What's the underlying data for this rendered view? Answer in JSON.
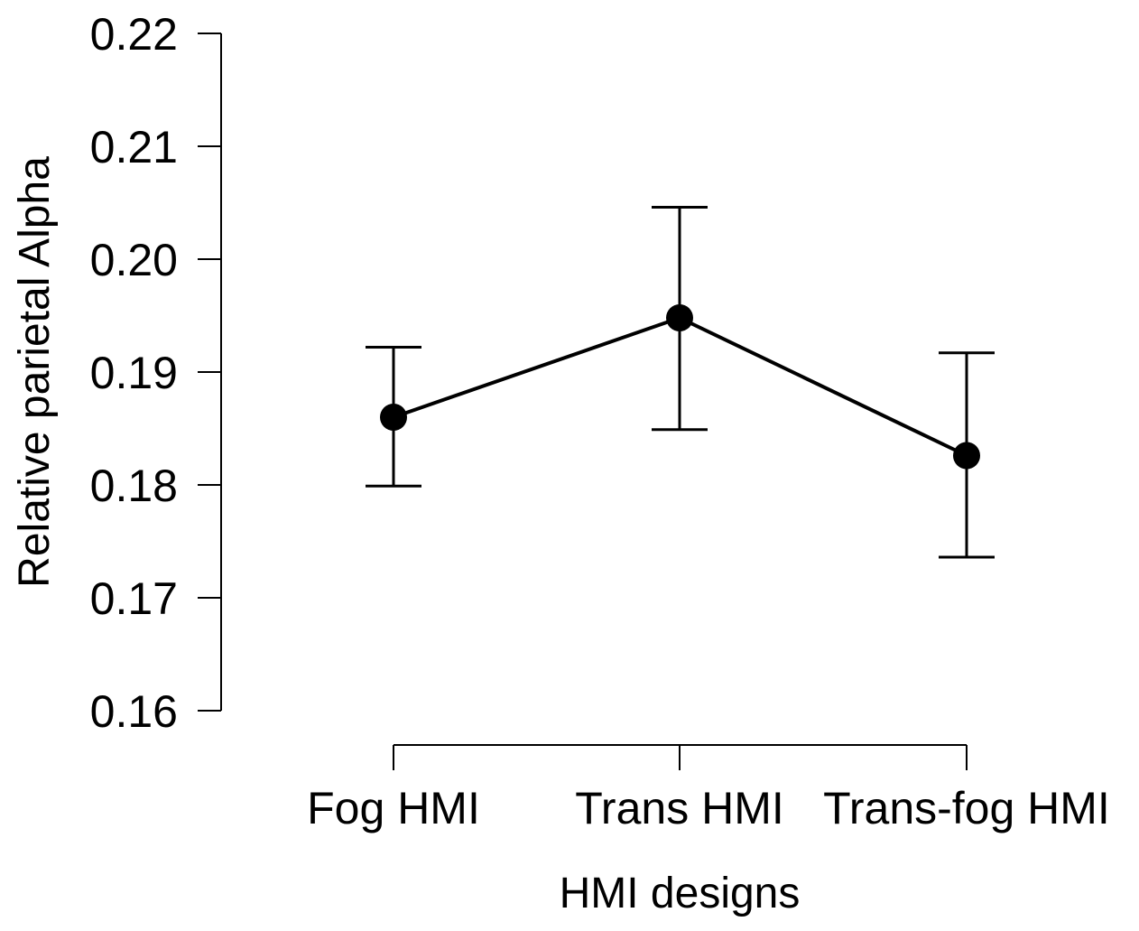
{
  "chart_data": {
    "type": "line",
    "title": "",
    "xlabel": "HMI designs",
    "ylabel": "Relative parietal Alpha",
    "categories": [
      "Fog HMI",
      "Trans HMI",
      "Trans-fog HMI"
    ],
    "series": [
      {
        "values": [
          0.186,
          0.1948,
          0.1826
        ],
        "error_lower": [
          0.1799,
          0.1849,
          0.1736
        ],
        "error_upper": [
          0.1922,
          0.2046,
          0.1917
        ]
      }
    ],
    "ylim": [
      0.16,
      0.22
    ],
    "yticks": [
      0.16,
      0.17,
      0.18,
      0.19,
      0.2,
      0.21,
      0.22
    ],
    "ytick_labels": [
      "0.16",
      "0.17",
      "0.18",
      "0.19",
      "0.20",
      "0.21",
      "0.22"
    ],
    "grid": false,
    "legend": "none",
    "colors": {
      "line": "#000000",
      "marker": "#000000"
    }
  }
}
